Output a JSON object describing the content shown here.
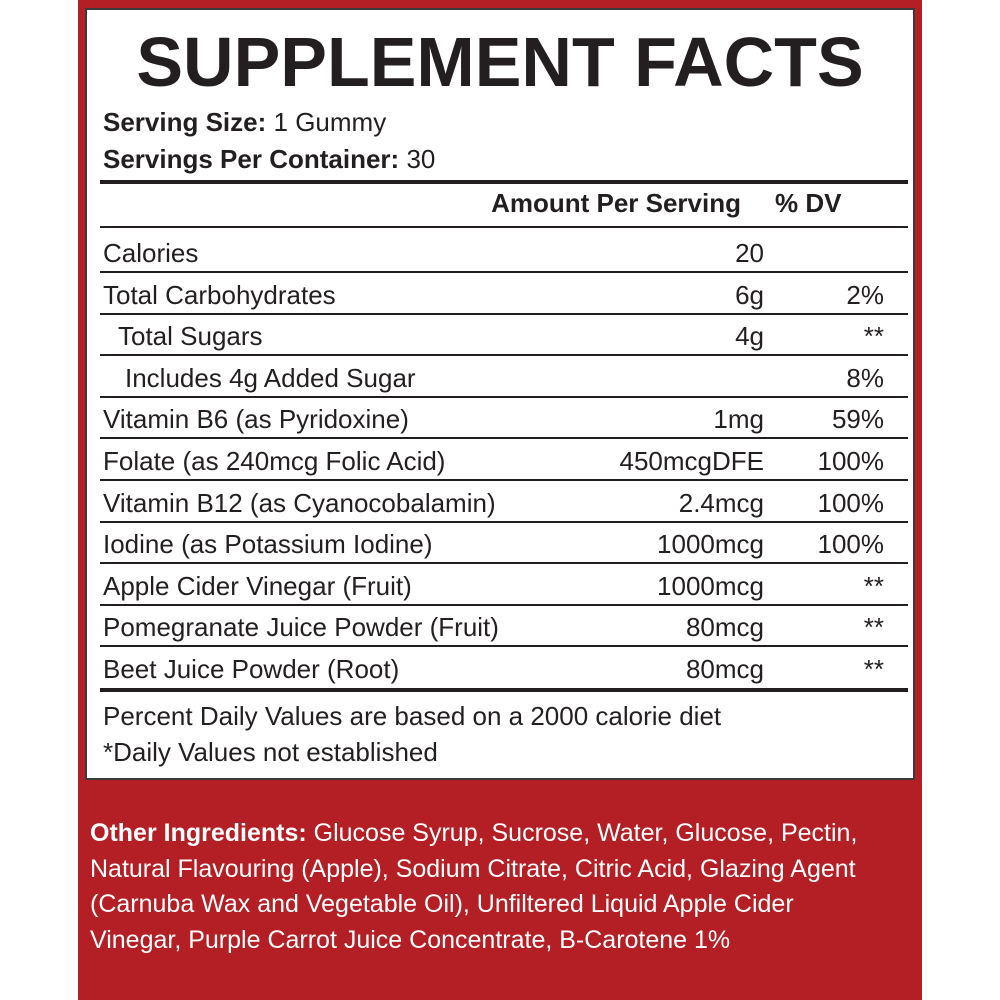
{
  "title": "SUPPLEMENT FACTS",
  "serving_size": {
    "label": "Serving Size:",
    "value": "1 Gummy"
  },
  "servings_per_container": {
    "label": "Servings Per Container:",
    "value": "30"
  },
  "header": {
    "amount": "Amount Per Serving",
    "dv": "% DV"
  },
  "rows": [
    {
      "name": "Calories",
      "amount": "20"
    },
    {
      "name": "Total Carbohydrates",
      "amount": "6g",
      "dv": "2%"
    },
    {
      "name": "Total Sugars",
      "amount": "4g",
      "dv": "**"
    },
    {
      "name": "Includes 4g Added Sugar",
      "dv": "8%"
    },
    {
      "name": "Vitamin B6 (as Pyridoxine)",
      "amount": "1mg",
      "dv": "59%"
    },
    {
      "name": "Folate (as 240mcg Folic Acid)",
      "amount": "450mcgDFE",
      "dv": "100%"
    },
    {
      "name": "Vitamin B12 (as Cyanocobalamin)",
      "amount": "2.4mcg",
      "dv": "100%"
    },
    {
      "name": "Iodine (as Potassium Iodine)",
      "amount": "1000mcg",
      "dv": "100%"
    },
    {
      "name": "Apple Cider Vinegar (Fruit)",
      "amount": "1000mcg",
      "dv": "**"
    },
    {
      "name": "Pomegranate Juice Powder (Fruit)",
      "amount": "80mcg",
      "dv": "**"
    },
    {
      "name": "Beet Juice Powder (Root)",
      "amount": "80mcg",
      "dv": "**"
    }
  ],
  "footnotes": [
    "Percent Daily Values are based on a 2000 calorie diet",
    "*Daily Values not established"
  ],
  "other_ingredients": {
    "label": "Other Ingredients:",
    "text": "Glucose Syrup, Sucrose, Water, Glucose, Pectin, Natural Flavouring (Apple), Sodium Citrate, Citric Acid, Glazing Agent (Carnuba Wax and Vegetable Oil), Unfiltered Liquid Apple Cider Vinegar, Purple Carrot Juice Concentrate, B-Carotene 1%"
  }
}
